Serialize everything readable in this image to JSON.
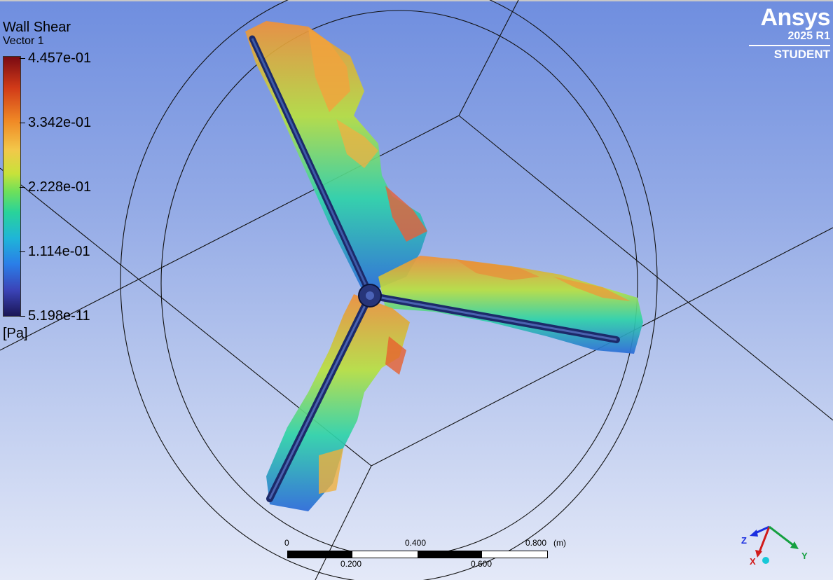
{
  "legend": {
    "title": "Wall Shear",
    "subtitle": "Vector 1",
    "ticks": [
      "4.457e-01",
      "3.342e-01",
      "2.228e-01",
      "1.114e-01",
      "5.198e-11"
    ],
    "unit": "[Pa]"
  },
  "logo": {
    "brand": "Ansys",
    "version": "2025 R1",
    "edition": "STUDENT"
  },
  "scale": {
    "labels_top": [
      "0",
      "0.400",
      "0.800"
    ],
    "labels_bottom": [
      "0.200",
      "0.600"
    ],
    "unit": "(m)"
  },
  "triad": {
    "z": "Z",
    "x": "X",
    "y": "Y"
  },
  "colors": {
    "background_top": "#6f8edf",
    "background_bottom": "#e4e9f8",
    "axis_z": "#1b2fe0",
    "axis_x": "#d11a1a",
    "axis_y": "#15a040",
    "triad_center": "#18c8d8"
  }
}
